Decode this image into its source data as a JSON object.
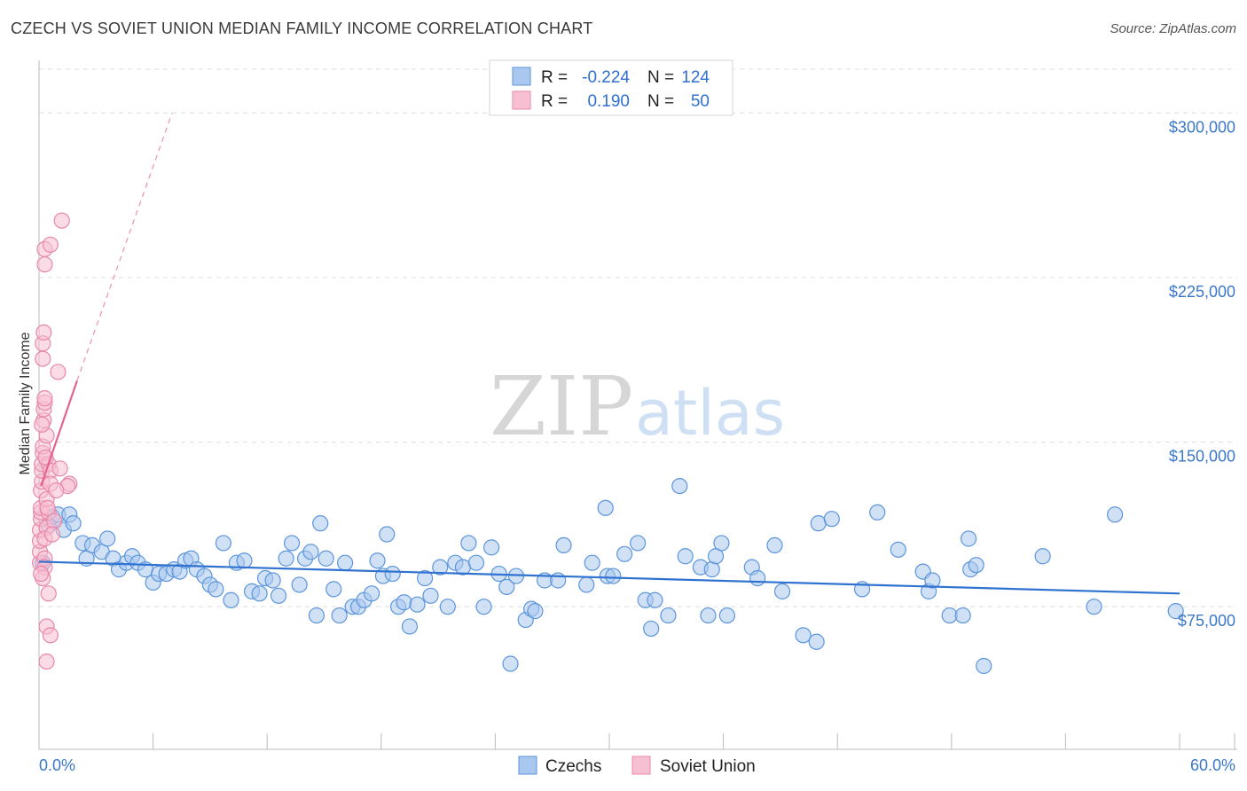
{
  "title": "CZECH VS SOVIET UNION MEDIAN FAMILY INCOME CORRELATION CHART",
  "source": "Source: ZipAtlas.com",
  "watermark": {
    "zip": "ZIP",
    "atlas": "atlas"
  },
  "colors": {
    "czech_fill": "#aac8ef",
    "czech_stroke": "#5b95dc",
    "czech_line": "#2f72cf",
    "soviet_fill": "#f7bfd2",
    "soviet_stroke": "#e888a8",
    "soviet_line": "#e4648f",
    "tick_text": "#3b78c9",
    "grid": "#dddddd"
  },
  "legend": {
    "rows": [
      {
        "r_label": "R =",
        "r_value": "-0.224",
        "n_label": "N =",
        "n_value": "124"
      },
      {
        "r_label": "R =",
        "r_value": "0.190",
        "n_label": "N =",
        "n_value": "50"
      }
    ]
  },
  "chart_data": {
    "type": "scatter",
    "xlabel": "",
    "ylabel": "Median Family Income",
    "xlim": [
      0,
      60
    ],
    "ylim": [
      10000,
      320000
    ],
    "x_tick_labels": [
      "0.0%",
      "60.0%"
    ],
    "y_tick_labels": [
      "$75,000",
      "$150,000",
      "$225,000",
      "$300,000"
    ],
    "y_ticks": [
      75000,
      150000,
      225000,
      300000
    ],
    "grid": true,
    "legend_placement": "top-center",
    "series": [
      {
        "name": "Czechs",
        "trend": {
          "x": [
            0,
            60
          ],
          "y": [
            95500,
            81000
          ],
          "extended": false
        },
        "points": [
          [
            0.2,
            95000
          ],
          [
            0.5,
            112000
          ],
          [
            0.7,
            116000
          ],
          [
            1.0,
            117000
          ],
          [
            1.3,
            110000
          ],
          [
            1.6,
            117000
          ],
          [
            1.8,
            113000
          ],
          [
            2.3,
            104000
          ],
          [
            2.5,
            97000
          ],
          [
            2.8,
            103000
          ],
          [
            3.3,
            100000
          ],
          [
            3.6,
            106000
          ],
          [
            3.9,
            97000
          ],
          [
            4.2,
            92000
          ],
          [
            4.6,
            95000
          ],
          [
            4.9,
            98000
          ],
          [
            5.2,
            95000
          ],
          [
            5.6,
            92000
          ],
          [
            6.0,
            86000
          ],
          [
            6.3,
            90000
          ],
          [
            6.7,
            90000
          ],
          [
            7.1,
            92000
          ],
          [
            7.4,
            91000
          ],
          [
            7.7,
            96000
          ],
          [
            8.0,
            97000
          ],
          [
            8.3,
            92000
          ],
          [
            8.7,
            89000
          ],
          [
            9.0,
            85000
          ],
          [
            9.3,
            83000
          ],
          [
            9.7,
            104000
          ],
          [
            10.1,
            78000
          ],
          [
            10.4,
            95000
          ],
          [
            10.8,
            96000
          ],
          [
            11.2,
            82000
          ],
          [
            11.6,
            81000
          ],
          [
            11.9,
            88000
          ],
          [
            12.3,
            87000
          ],
          [
            12.6,
            80000
          ],
          [
            13.0,
            97000
          ],
          [
            13.3,
            104000
          ],
          [
            13.7,
            85000
          ],
          [
            14.0,
            97000
          ],
          [
            14.3,
            100000
          ],
          [
            14.6,
            71000
          ],
          [
            14.8,
            113000
          ],
          [
            15.1,
            97000
          ],
          [
            15.5,
            83000
          ],
          [
            15.8,
            71000
          ],
          [
            16.1,
            95000
          ],
          [
            16.5,
            75000
          ],
          [
            16.8,
            75000
          ],
          [
            17.1,
            78000
          ],
          [
            17.5,
            81000
          ],
          [
            17.8,
            96000
          ],
          [
            18.1,
            89000
          ],
          [
            18.3,
            108000
          ],
          [
            18.6,
            90000
          ],
          [
            18.9,
            75000
          ],
          [
            19.2,
            77000
          ],
          [
            19.5,
            66000
          ],
          [
            19.9,
            76000
          ],
          [
            20.3,
            88000
          ],
          [
            20.6,
            80000
          ],
          [
            21.1,
            93000
          ],
          [
            21.5,
            75000
          ],
          [
            21.9,
            95000
          ],
          [
            22.3,
            93000
          ],
          [
            22.6,
            104000
          ],
          [
            23.0,
            95000
          ],
          [
            23.4,
            75000
          ],
          [
            23.8,
            102000
          ],
          [
            24.2,
            90000
          ],
          [
            24.6,
            84000
          ],
          [
            24.8,
            49000
          ],
          [
            25.1,
            89000
          ],
          [
            25.6,
            69000
          ],
          [
            25.9,
            74000
          ],
          [
            26.1,
            73000
          ],
          [
            26.6,
            87000
          ],
          [
            27.3,
            87000
          ],
          [
            27.6,
            103000
          ],
          [
            28.8,
            85000
          ],
          [
            29.1,
            95000
          ],
          [
            29.8,
            120000
          ],
          [
            29.9,
            89000
          ],
          [
            30.2,
            89000
          ],
          [
            30.8,
            99000
          ],
          [
            31.5,
            104000
          ],
          [
            31.9,
            78000
          ],
          [
            32.2,
            65000
          ],
          [
            32.4,
            78000
          ],
          [
            33.1,
            71000
          ],
          [
            33.7,
            130000
          ],
          [
            34.0,
            98000
          ],
          [
            34.8,
            93000
          ],
          [
            35.2,
            71000
          ],
          [
            35.4,
            92000
          ],
          [
            35.6,
            98000
          ],
          [
            35.9,
            104000
          ],
          [
            36.2,
            71000
          ],
          [
            37.5,
            93000
          ],
          [
            37.8,
            88000
          ],
          [
            38.7,
            103000
          ],
          [
            39.1,
            82000
          ],
          [
            40.2,
            62000
          ],
          [
            40.9,
            59000
          ],
          [
            41.0,
            113000
          ],
          [
            41.7,
            115000
          ],
          [
            43.3,
            83000
          ],
          [
            44.1,
            118000
          ],
          [
            45.2,
            101000
          ],
          [
            46.5,
            91000
          ],
          [
            46.8,
            82000
          ],
          [
            47.0,
            87000
          ],
          [
            47.9,
            71000
          ],
          [
            48.6,
            71000
          ],
          [
            49.0,
            92000
          ],
          [
            49.3,
            94000
          ],
          [
            48.9,
            106000
          ],
          [
            49.7,
            48000
          ],
          [
            52.8,
            98000
          ],
          [
            55.5,
            75000
          ],
          [
            56.6,
            117000
          ],
          [
            59.8,
            73000
          ]
        ]
      },
      {
        "name": "Soviet Union",
        "trend": {
          "x": [
            0.1,
            2.0
          ],
          "y": [
            130000,
            178000
          ],
          "ext_x": [
            2.0,
            7.0
          ],
          "ext_y": [
            178000,
            300000
          ]
        },
        "points": [
          [
            0.05,
            95000
          ],
          [
            0.05,
            100000
          ],
          [
            0.05,
            105000
          ],
          [
            0.05,
            110000
          ],
          [
            0.1,
            115000
          ],
          [
            0.1,
            118000
          ],
          [
            0.1,
            120000
          ],
          [
            0.1,
            128000
          ],
          [
            0.15,
            132000
          ],
          [
            0.15,
            137000
          ],
          [
            0.15,
            140000
          ],
          [
            0.2,
            145000
          ],
          [
            0.2,
            148000
          ],
          [
            0.25,
            160000
          ],
          [
            0.25,
            165000
          ],
          [
            0.3,
            168000
          ],
          [
            0.3,
            170000
          ],
          [
            0.2,
            188000
          ],
          [
            0.2,
            195000
          ],
          [
            0.25,
            200000
          ],
          [
            0.3,
            231000
          ],
          [
            0.3,
            238000
          ],
          [
            0.6,
            240000
          ],
          [
            1.2,
            251000
          ],
          [
            1.0,
            182000
          ],
          [
            0.4,
            153000
          ],
          [
            0.5,
            140000
          ],
          [
            0.6,
            137000
          ],
          [
            1.1,
            138000
          ],
          [
            1.6,
            131000
          ],
          [
            1.5,
            130000
          ],
          [
            0.6,
            131000
          ],
          [
            0.5,
            118000
          ],
          [
            0.4,
            124000
          ],
          [
            0.4,
            111000
          ],
          [
            0.3,
            106000
          ],
          [
            0.3,
            97000
          ],
          [
            0.3,
            93000
          ],
          [
            0.2,
            88000
          ],
          [
            0.5,
            81000
          ],
          [
            0.4,
            66000
          ],
          [
            0.6,
            62000
          ],
          [
            0.4,
            50000
          ],
          [
            0.35,
            143000
          ],
          [
            0.45,
            120000
          ],
          [
            0.1,
            90000
          ],
          [
            0.8,
            114000
          ],
          [
            0.9,
            128000
          ],
          [
            0.7,
            108000
          ],
          [
            0.15,
            158000
          ]
        ]
      }
    ]
  },
  "bottom_legend": [
    "Czechs",
    "Soviet Union"
  ]
}
